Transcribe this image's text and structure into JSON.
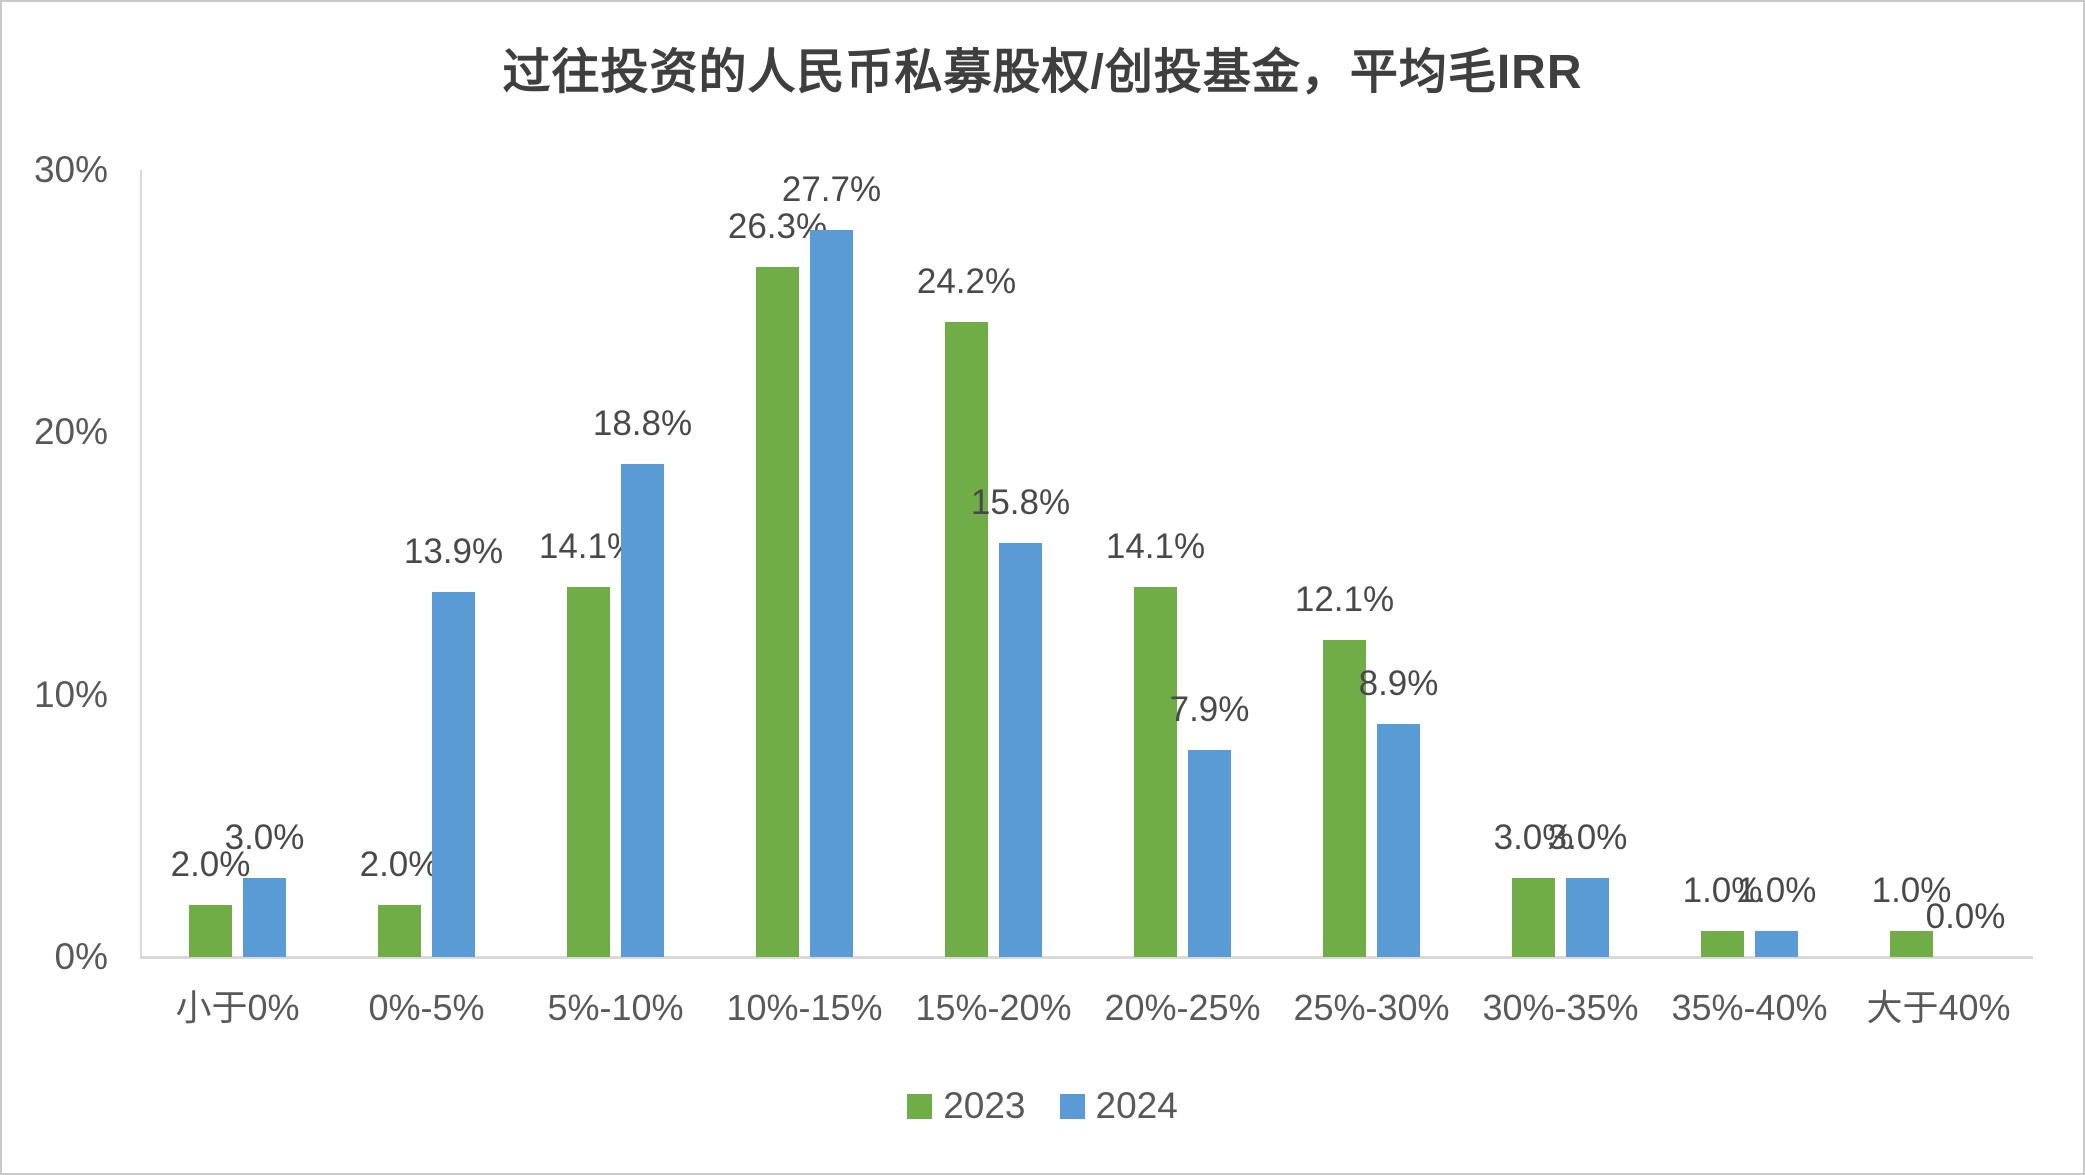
{
  "chart_data": {
    "type": "bar",
    "title": "过往投资的人民币私募股权/创投基金，平均毛IRR",
    "categories": [
      "小于0%",
      "0%-5%",
      "5%-10%",
      "10%-15%",
      "15%-20%",
      "20%-25%",
      "25%-30%",
      "30%-35%",
      "35%-40%",
      "大于40%"
    ],
    "series": [
      {
        "name": "2023",
        "color": "#70AD47",
        "values": [
          2.0,
          2.0,
          14.1,
          26.3,
          24.2,
          14.1,
          12.1,
          3.0,
          1.0,
          1.0
        ]
      },
      {
        "name": "2024",
        "color": "#5B9BD5",
        "values": [
          3.0,
          13.9,
          18.8,
          27.7,
          15.8,
          7.9,
          8.9,
          3.0,
          1.0,
          0.0
        ]
      }
    ],
    "value_label_suffix": "%",
    "value_label_decimals": 1,
    "xlabel": "",
    "ylabel": "",
    "y_axis": {
      "min": 0,
      "max": 30,
      "tick_values": [
        0,
        10,
        20,
        30
      ],
      "tick_labels": [
        "0%",
        "10%",
        "20%",
        "30%"
      ]
    },
    "grid": false,
    "legend_position": "bottom",
    "axis_color": "#d9d9d9",
    "label_color": "#595959"
  }
}
